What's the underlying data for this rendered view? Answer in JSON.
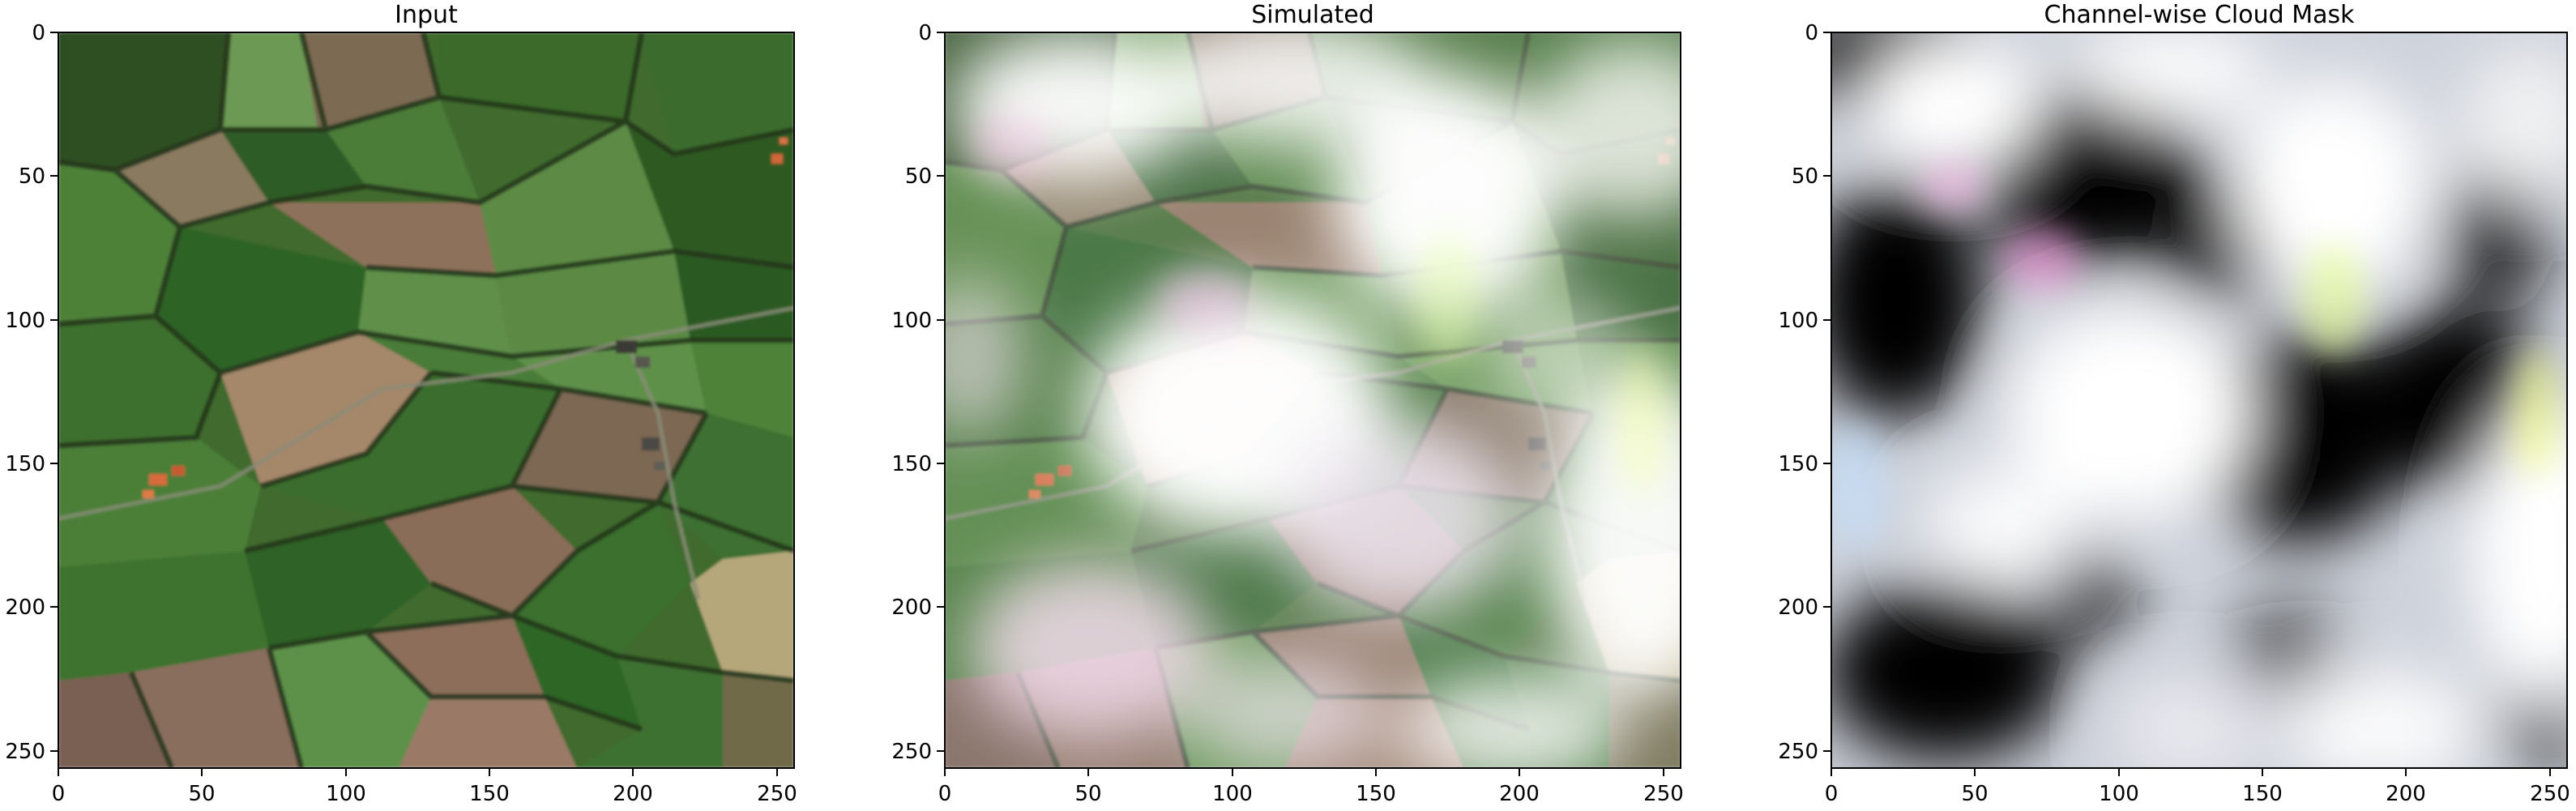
{
  "figure": {
    "panels": [
      {
        "id": "input",
        "title": "Input",
        "content": "input-image",
        "colors": {
          "background": "#4a6b33",
          "field_dark": "#2f5a25",
          "field_mid": "#4f7d3a",
          "field_light": "#6f9656",
          "field_pale": "#8daa6e",
          "field_brown": "#8a7059",
          "field_tan": "#a89071",
          "field_khaki": "#b7ad80",
          "hedge": "#2a3a22",
          "road": "#7a7f68",
          "roof": "#d46a3c"
        }
      },
      {
        "id": "simulated",
        "title": "Simulated",
        "content": "simulated-image",
        "colors": {
          "cloud": "#ffffff",
          "cloud_pink": "#f3d9ec",
          "cloud_green": "#e7f7c8"
        }
      },
      {
        "id": "mask",
        "title": "Channel-wise Cloud Mask",
        "content": "cloud-mask-image",
        "colors": {
          "background": "#d8dce8",
          "shadow": "#000000",
          "cloud": "#ffffff"
        }
      }
    ],
    "axis": {
      "x_ticks": [
        "0",
        "50",
        "100",
        "150",
        "200",
        "250"
      ],
      "y_ticks": [
        "0",
        "50",
        "100",
        "150",
        "200",
        "250"
      ],
      "extent": [
        0,
        256
      ]
    }
  }
}
